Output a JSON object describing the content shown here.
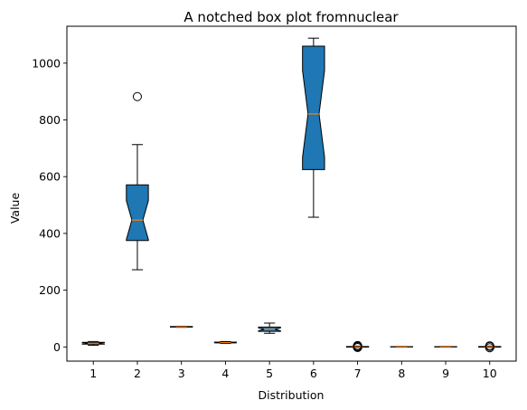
{
  "chart_data": {
    "type": "boxplot",
    "title": "A notched box plot fromnuclear",
    "xlabel": "Distribution",
    "ylabel": "Value",
    "notched": true,
    "ylim": [
      -50,
      1130
    ],
    "yticks": [
      0,
      200,
      400,
      600,
      800,
      1000
    ],
    "box_color": "#1f77b4",
    "median_color": "#ff7f0e",
    "categories": [
      "1",
      "2",
      "3",
      "4",
      "5",
      "6",
      "7",
      "8",
      "9",
      "10"
    ],
    "boxes": [
      {
        "label": "1",
        "whislo": 6,
        "q1": 10,
        "med": 13,
        "q3": 16,
        "whishi": 19,
        "fliers": []
      },
      {
        "label": "2",
        "whislo": 272,
        "q1": 375,
        "med": 447,
        "q3": 571,
        "whishi": 713,
        "fliers": [
          882
        ]
      },
      {
        "label": "3",
        "whislo": 69,
        "q1": 70,
        "med": 71,
        "q3": 72,
        "whishi": 73,
        "fliers": []
      },
      {
        "label": "4",
        "whislo": 12,
        "q1": 14,
        "med": 15,
        "q3": 17,
        "whishi": 19,
        "fliers": []
      },
      {
        "label": "5",
        "whislo": 48,
        "q1": 55,
        "med": 62,
        "q3": 70,
        "whishi": 84,
        "fliers": []
      },
      {
        "label": "6",
        "whislo": 457,
        "q1": 625,
        "med": 821,
        "q3": 1060,
        "whishi": 1088,
        "fliers": []
      },
      {
        "label": "7",
        "whislo": -2,
        "q1": -0.5,
        "med": 0.5,
        "q3": 1.5,
        "whishi": 3,
        "fliers": [
          -2,
          1,
          3,
          5
        ]
      },
      {
        "label": "8",
        "whislo": -1,
        "q1": 0,
        "med": 0.5,
        "q3": 1,
        "whishi": 2,
        "fliers": []
      },
      {
        "label": "9",
        "whislo": -1,
        "q1": 0,
        "med": 0.5,
        "q3": 1,
        "whishi": 2,
        "fliers": []
      },
      {
        "label": "10",
        "whislo": -2,
        "q1": -0.5,
        "med": 0.5,
        "q3": 1.5,
        "whishi": 3,
        "fliers": [
          -3,
          2,
          4
        ]
      }
    ]
  }
}
